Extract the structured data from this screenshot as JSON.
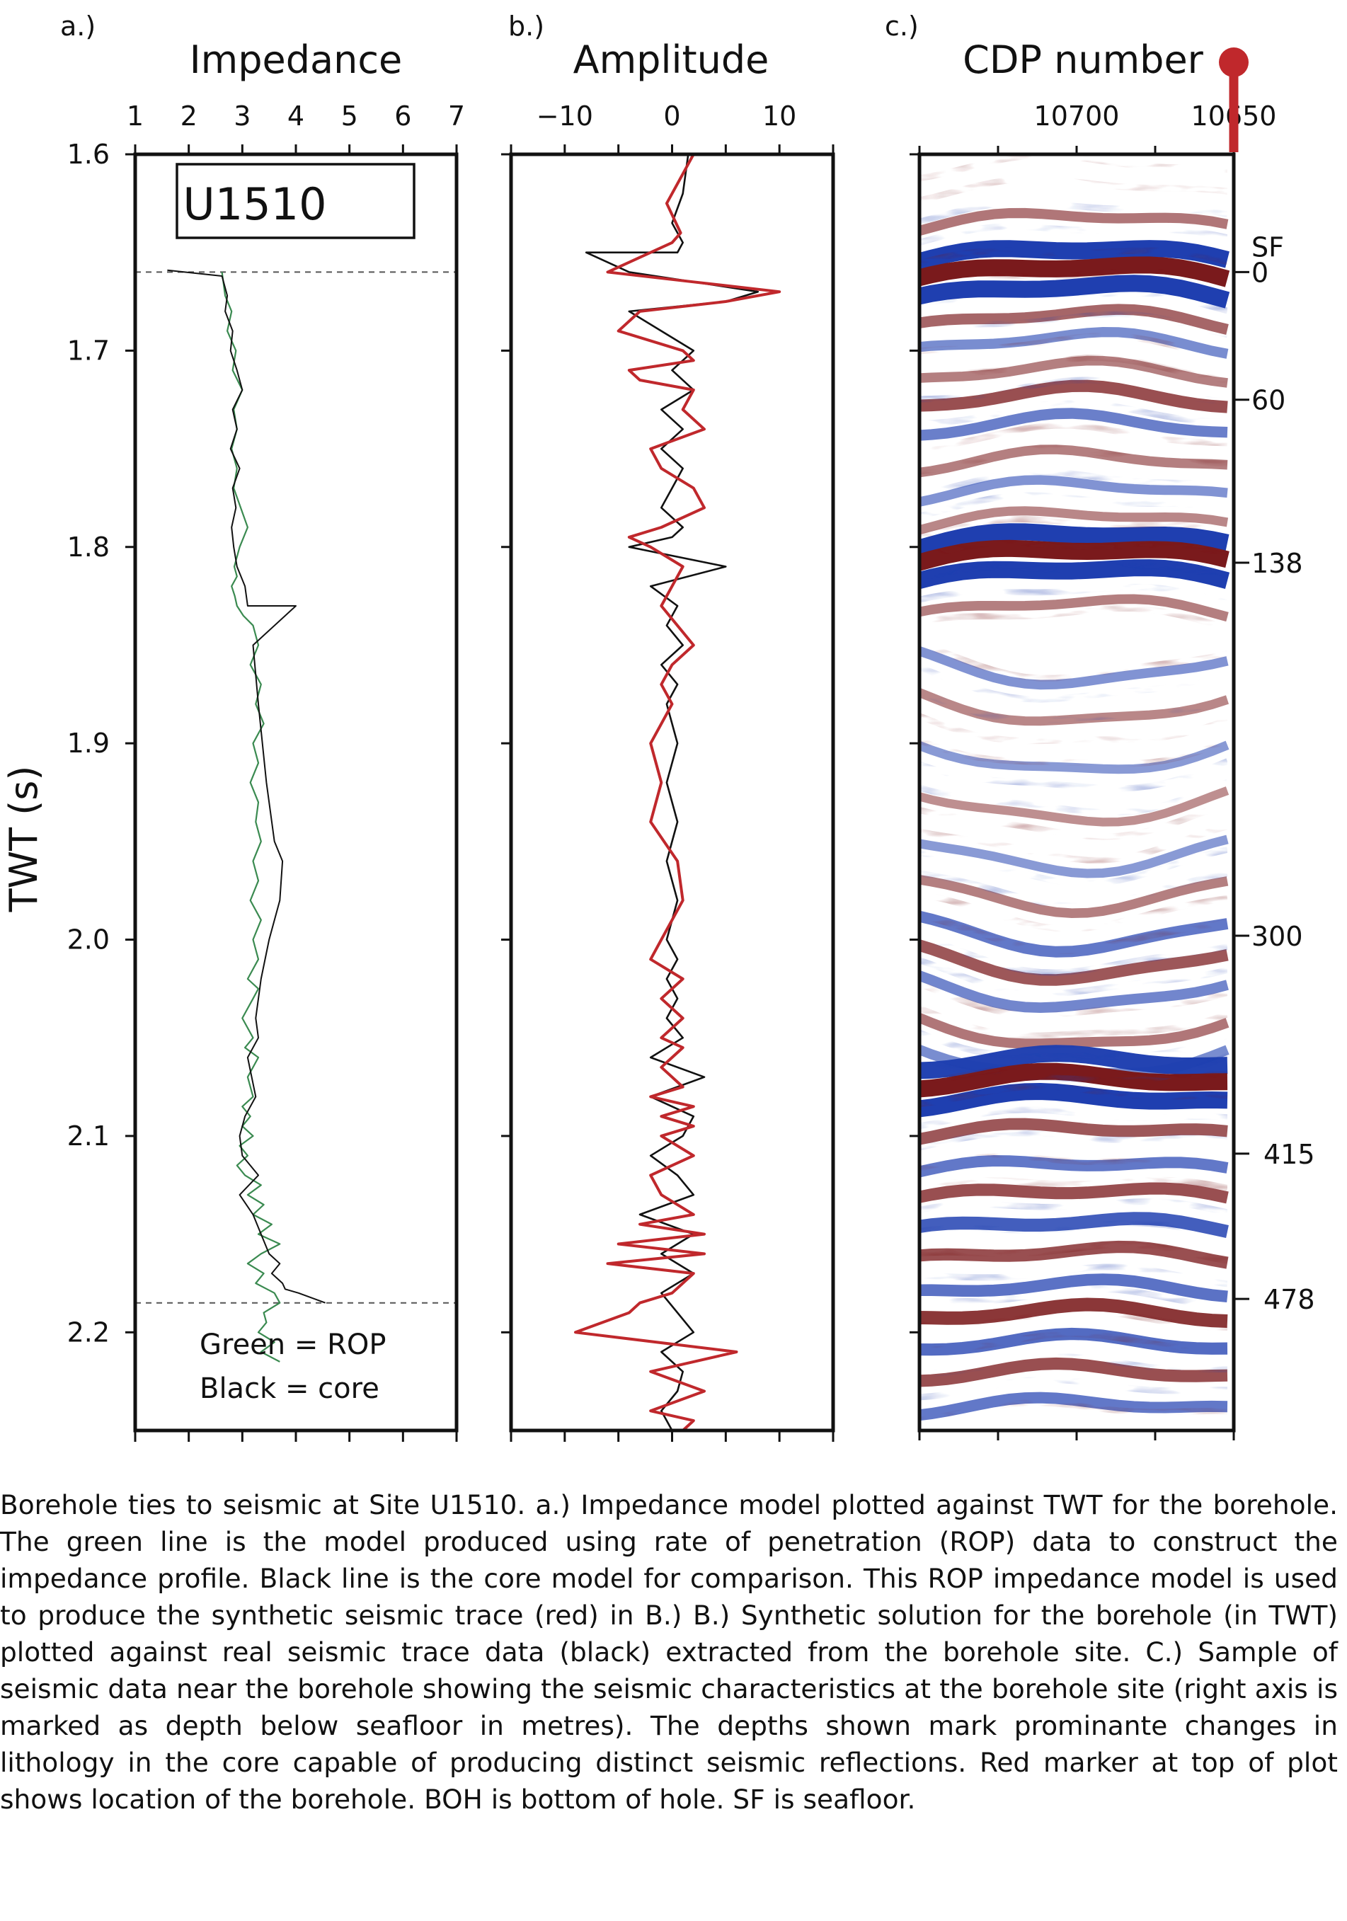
{
  "chart_data": [
    {
      "type": "line",
      "panel_label": "a.)",
      "title": "Impedance",
      "ylabel": "TWT (s)",
      "xlim": [
        1,
        7
      ],
      "ylim": [
        1.6,
        2.25
      ],
      "xticks": [
        "1",
        "2",
        "3",
        "4",
        "5",
        "6",
        "7"
      ],
      "yticks": [
        "1.6",
        "1.7",
        "1.8",
        "1.9",
        "2.0",
        "2.1",
        "2.2"
      ],
      "site_label": "U1510",
      "legend": [
        "Green = ROP",
        "Black = core"
      ],
      "reference_lines_twt": [
        1.66,
        2.185
      ],
      "series": [
        {
          "name": "ROP",
          "color": "#3a8a50",
          "x": [
            2.62,
            2.68,
            2.8,
            2.72,
            2.88,
            2.82,
            3.0,
            2.84,
            2.9,
            2.8,
            2.9,
            2.84,
            3.1,
            2.95,
            2.85,
            2.9,
            2.8,
            2.86,
            2.9,
            3.02,
            3.2,
            3.3,
            3.15,
            3.35,
            3.25,
            3.4,
            3.2,
            3.3,
            3.15,
            3.3,
            3.25,
            3.35,
            3.2,
            3.3,
            3.15,
            3.35,
            3.2,
            3.3,
            3.1,
            3.3,
            3.2,
            3.0,
            3.2,
            3.05,
            3.3,
            3.1,
            3.2,
            3.0,
            3.15,
            3.0,
            3.2,
            2.95,
            3.1,
            2.9,
            3.05,
            3.35,
            3.1,
            3.4,
            3.2,
            3.55,
            3.3,
            3.7,
            3.35,
            3.1,
            3.4,
            3.25,
            3.6,
            3.7,
            3.4,
            3.45,
            3.3,
            3.6,
            3.35,
            3.7
          ],
          "y": [
            1.66,
            1.672,
            1.68,
            1.69,
            1.7,
            1.71,
            1.72,
            1.73,
            1.74,
            1.75,
            1.76,
            1.77,
            1.79,
            1.8,
            1.81,
            1.815,
            1.82,
            1.825,
            1.83,
            1.835,
            1.84,
            1.85,
            1.86,
            1.87,
            1.88,
            1.89,
            1.9,
            1.91,
            1.92,
            1.93,
            1.94,
            1.95,
            1.96,
            1.97,
            1.98,
            1.99,
            2.0,
            2.01,
            2.02,
            2.025,
            2.03,
            2.04,
            2.05,
            2.055,
            2.06,
            2.07,
            2.08,
            2.085,
            2.09,
            2.095,
            2.1,
            2.105,
            2.11,
            2.115,
            2.12,
            2.125,
            2.13,
            2.135,
            2.14,
            2.145,
            2.15,
            2.155,
            2.16,
            2.165,
            2.17,
            2.175,
            2.18,
            2.185,
            2.19,
            2.195,
            2.2,
            2.205,
            2.21,
            2.215
          ]
        },
        {
          "name": "core",
          "color": "#111111",
          "x": [
            1.6,
            2.62,
            2.72,
            2.68,
            2.82,
            2.78,
            2.9,
            3.0,
            2.82,
            2.9,
            2.78,
            2.95,
            2.82,
            2.88,
            2.8,
            2.84,
            2.9,
            3.05,
            3.1,
            4.0,
            3.2,
            3.3,
            3.45,
            3.6,
            3.75,
            3.7,
            3.5,
            3.35,
            3.25,
            3.3,
            3.1,
            3.25,
            3.05,
            2.95,
            3.0,
            3.3,
            2.95,
            3.2,
            3.35,
            3.5,
            3.7,
            3.55,
            3.75,
            3.8,
            4.05,
            4.55
          ],
          "y": [
            1.659,
            1.662,
            1.672,
            1.68,
            1.69,
            1.7,
            1.71,
            1.72,
            1.73,
            1.74,
            1.75,
            1.76,
            1.77,
            1.78,
            1.79,
            1.8,
            1.81,
            1.82,
            1.83,
            1.83,
            1.85,
            1.88,
            1.92,
            1.95,
            1.96,
            1.98,
            2.0,
            2.02,
            2.04,
            2.05,
            2.06,
            2.08,
            2.09,
            2.1,
            2.11,
            2.12,
            2.13,
            2.14,
            2.15,
            2.16,
            2.165,
            2.17,
            2.175,
            2.178,
            2.18,
            2.185
          ]
        }
      ]
    },
    {
      "type": "line",
      "panel_label": "b.)",
      "title": "Amplitude",
      "xlim": [
        -15,
        15
      ],
      "ylim": [
        1.6,
        2.25
      ],
      "xticks": [
        "−10",
        "0",
        "10"
      ],
      "series": [
        {
          "name": "synthetic",
          "color": "#c0282c",
          "x": [
            2,
            1,
            -0.5,
            0.8,
            0,
            -4,
            -6,
            2,
            10,
            5,
            -3,
            -5,
            1,
            2,
            -4,
            -3,
            2,
            1,
            3,
            -2,
            -1,
            2,
            3,
            -1,
            -4,
            -2,
            1,
            0,
            -1,
            2,
            0,
            -1,
            0,
            -2,
            -1,
            -2,
            0.5,
            1,
            -1,
            -2,
            1,
            -1,
            1,
            -1,
            1,
            0,
            -1,
            0,
            1,
            -2,
            2,
            -1,
            2,
            -1,
            2,
            -2,
            -1,
            2,
            -3,
            3,
            -5,
            3,
            -6,
            2,
            0,
            -3,
            -4,
            -9,
            6,
            -2,
            3,
            -2,
            2,
            1,
            -1,
            -1
          ],
          "y": [
            1.6,
            1.61,
            1.625,
            1.64,
            1.645,
            1.655,
            1.66,
            1.665,
            1.67,
            1.675,
            1.68,
            1.69,
            1.7,
            1.705,
            1.71,
            1.715,
            1.72,
            1.73,
            1.74,
            1.75,
            1.76,
            1.77,
            1.78,
            1.79,
            1.795,
            1.8,
            1.81,
            1.82,
            1.83,
            1.85,
            1.86,
            1.87,
            1.88,
            1.9,
            1.92,
            1.94,
            1.96,
            1.98,
            2.0,
            2.01,
            2.02,
            2.03,
            2.04,
            2.05,
            2.055,
            2.06,
            2.065,
            2.07,
            2.075,
            2.08,
            2.085,
            2.09,
            2.095,
            2.1,
            2.11,
            2.12,
            2.13,
            2.14,
            2.145,
            2.15,
            2.155,
            2.16,
            2.165,
            2.17,
            2.18,
            2.185,
            2.19,
            2.2,
            2.21,
            2.22,
            2.23,
            2.24,
            2.245,
            2.25,
            2.25,
            2.25
          ]
        },
        {
          "name": "seismic trace",
          "color": "#111111",
          "x": [
            1.5,
            1,
            0,
            1,
            0.5,
            -8,
            -4,
            8,
            5,
            -4,
            -1,
            2,
            0,
            2,
            -1,
            1,
            -1,
            1,
            0,
            -1,
            1,
            0,
            -4,
            5,
            -2,
            0.5,
            -0.5,
            1,
            -1,
            0.5,
            -0.5,
            0.5,
            -0.5,
            0.5,
            -0.5,
            0.5,
            -0.5,
            0.5,
            -0.5,
            0.5,
            -0.5,
            1,
            -2,
            3,
            -2,
            2,
            1,
            -2,
            0.5,
            2,
            -3,
            2,
            -1,
            2,
            -1,
            0.5,
            2,
            -1,
            1,
            0.5,
            -1,
            0
          ],
          "y": [
            1.6,
            1.62,
            1.635,
            1.645,
            1.65,
            1.65,
            1.66,
            1.67,
            1.675,
            1.68,
            1.69,
            1.7,
            1.71,
            1.72,
            1.73,
            1.74,
            1.75,
            1.76,
            1.77,
            1.78,
            1.79,
            1.795,
            1.8,
            1.81,
            1.82,
            1.83,
            1.84,
            1.85,
            1.86,
            1.87,
            1.88,
            1.9,
            1.92,
            1.94,
            1.96,
            1.98,
            2.0,
            2.01,
            2.02,
            2.03,
            2.04,
            2.05,
            2.06,
            2.07,
            2.08,
            2.09,
            2.1,
            2.11,
            2.12,
            2.13,
            2.14,
            2.15,
            2.16,
            2.17,
            2.18,
            2.19,
            2.2,
            2.21,
            2.22,
            2.23,
            2.24,
            2.25
          ]
        }
      ]
    },
    {
      "type": "heatmap",
      "panel_label": "c.)",
      "title": "CDP number",
      "xticks": [
        "10700",
        "10650"
      ],
      "xlim": [
        10750,
        10650
      ],
      "ylim": [
        1.6,
        2.25
      ],
      "colors": {
        "positive": "#7a1a1c",
        "negative": "#1f3fb0",
        "zero": "#ffffff"
      },
      "right_axis_labels": [
        "SF",
        "0",
        "60",
        "138",
        "300",
        "415",
        "478"
      ],
      "right_axis_twt": [
        1.66,
        1.66,
        1.725,
        1.808,
        1.998,
        2.109,
        2.183
      ],
      "borehole_marker": {
        "cdp": 10650,
        "color": "#c0282c"
      },
      "bands": [
        {
          "twt": 1.638,
          "amp": 0.35
        },
        {
          "twt": 1.655,
          "amp": -1.0
        },
        {
          "twt": 1.664,
          "amp": 1.0
        },
        {
          "twt": 1.674,
          "amp": -1.0
        },
        {
          "twt": 1.688,
          "amp": 0.45
        },
        {
          "twt": 1.7,
          "amp": -0.35
        },
        {
          "twt": 1.715,
          "amp": 0.3
        },
        {
          "twt": 1.728,
          "amp": 0.6
        },
        {
          "twt": 1.742,
          "amp": -0.45
        },
        {
          "twt": 1.76,
          "amp": 0.3
        },
        {
          "twt": 1.775,
          "amp": -0.3
        },
        {
          "twt": 1.79,
          "amp": 0.25
        },
        {
          "twt": 1.8,
          "amp": -1.0
        },
        {
          "twt": 1.808,
          "amp": 1.0
        },
        {
          "twt": 1.818,
          "amp": -1.0
        },
        {
          "twt": 1.835,
          "amp": 0.3
        },
        {
          "twt": 1.855,
          "amp": -0.3
        },
        {
          "twt": 1.875,
          "amp": 0.25
        },
        {
          "twt": 1.9,
          "amp": -0.25
        },
        {
          "twt": 1.925,
          "amp": 0.2
        },
        {
          "twt": 1.95,
          "amp": -0.25
        },
        {
          "twt": 1.97,
          "amp": 0.3
        },
        {
          "twt": 1.99,
          "amp": -0.5
        },
        {
          "twt": 2.005,
          "amp": 0.55
        },
        {
          "twt": 2.02,
          "amp": -0.4
        },
        {
          "twt": 2.04,
          "amp": 0.35
        },
        {
          "twt": 2.055,
          "amp": -0.35
        },
        {
          "twt": 2.065,
          "amp": -0.9
        },
        {
          "twt": 2.074,
          "amp": 1.0
        },
        {
          "twt": 2.084,
          "amp": -1.0
        },
        {
          "twt": 2.1,
          "amp": 0.55
        },
        {
          "twt": 2.118,
          "amp": -0.5
        },
        {
          "twt": 2.132,
          "amp": 0.6
        },
        {
          "twt": 2.148,
          "amp": -0.7
        },
        {
          "twt": 2.163,
          "amp": 0.6
        },
        {
          "twt": 2.18,
          "amp": -0.55
        },
        {
          "twt": 2.193,
          "amp": 0.75
        },
        {
          "twt": 2.208,
          "amp": -0.6
        },
        {
          "twt": 2.223,
          "amp": 0.6
        },
        {
          "twt": 2.24,
          "amp": -0.5
        }
      ]
    }
  ],
  "caption": "Borehole ties to seismic at Site U1510. a.) Impedance model plotted against TWT for the borehole. The green line is the model produced using rate of penetration (ROP) data to construct the impedance profile.  Black line is the core model for comparison. This ROP impedance model is used to produce the synthetic seismic trace (red) in B.)  B.) Synthetic solution for the borehole (in TWT) plotted against real seismic trace data (black) extracted from the borehole site.  C.) Sample of seismic data near the borehole showing the seismic characteristics at the borehole site (right axis is marked as depth below seafloor in metres). The depths shown mark prominante changes in lithology in the core capable of producing distinct seismic reflections. Red marker at top of plot shows location of the borehole. BOH is bottom of hole.  SF is seafloor."
}
